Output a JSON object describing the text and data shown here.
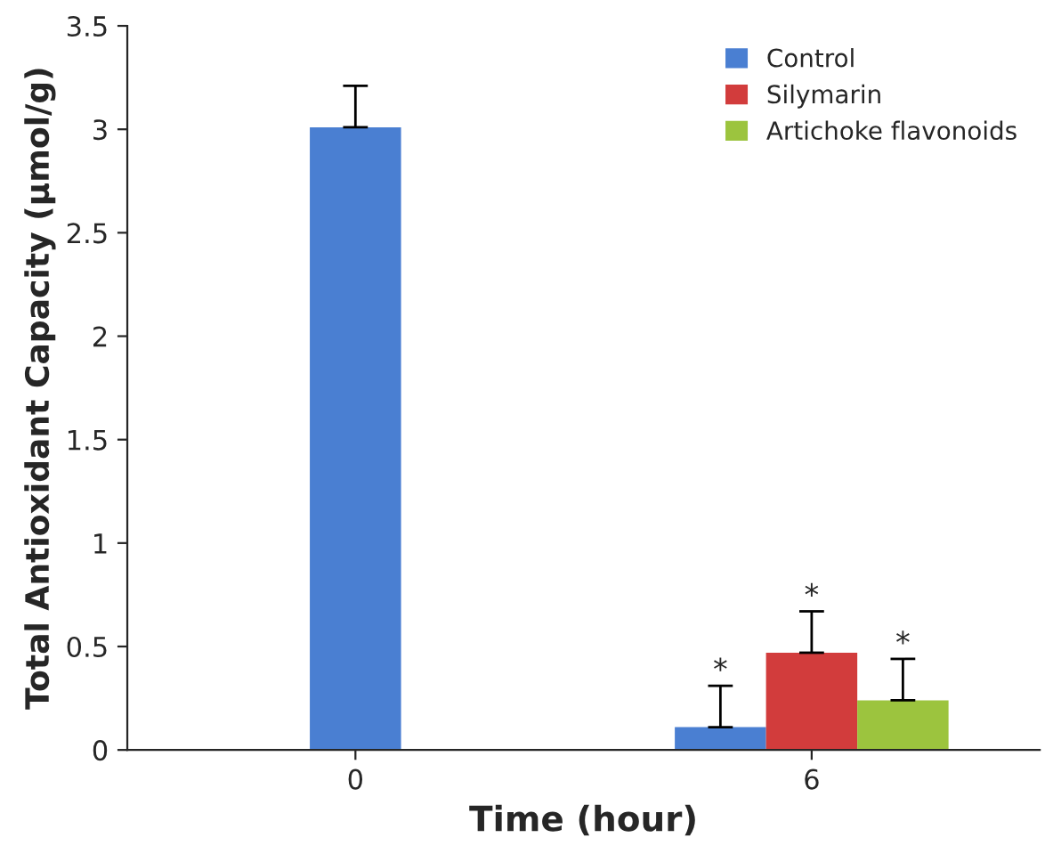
{
  "chart_data": {
    "type": "bar",
    "xlabel": "Time (hour)",
    "ylabel": "Total Antioxidant Capacity (µmol/g)",
    "categories": [
      "0",
      "6"
    ],
    "series": [
      {
        "name": "Control",
        "color": "#4a7fd2",
        "values": [
          3.01,
          0.11
        ],
        "errors": [
          0.2,
          0.2
        ]
      },
      {
        "name": "Silymarin",
        "color": "#d23c3c",
        "values": [
          null,
          0.47
        ],
        "errors": [
          null,
          0.2
        ]
      },
      {
        "name": "Artichoke flavonoids",
        "color": "#9cc43e",
        "values": [
          null,
          0.24
        ],
        "errors": [
          null,
          0.2
        ]
      }
    ],
    "annotations": [
      "*",
      "*",
      "*"
    ],
    "ylim": [
      0,
      3.5
    ],
    "yticks": [
      0,
      0.5,
      1,
      1.5,
      2,
      2.5,
      3,
      3.5
    ],
    "grid": false,
    "legend": "top right"
  }
}
